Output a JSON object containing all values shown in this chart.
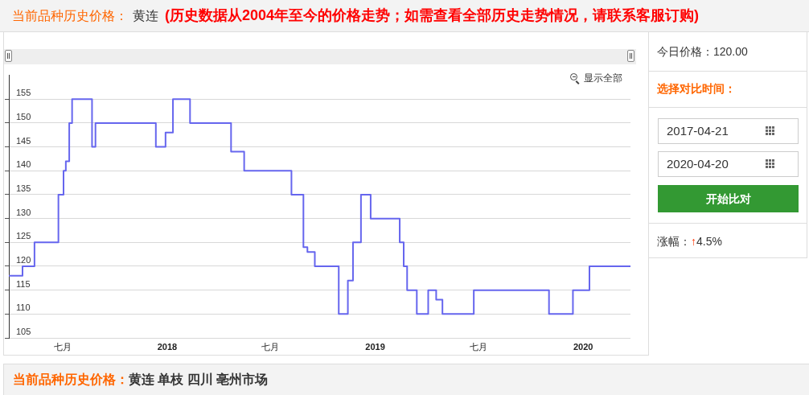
{
  "chart_data": {
    "type": "step",
    "annotations": [
      "当前品种历史价格：",
      "黄连",
      "(历史数据从2004年至今的价格走势；如需查看全部历史走势情况，请联系客服订购)",
      "显示全部",
      "今日价格：120.00",
      "选择对比时间：",
      "2017-04-21",
      "2020-04-20",
      "开始比对",
      "涨幅：",
      "↑",
      "4.5%",
      "当前品种历史价格：",
      "黄连 单枝 四川 亳州市场"
    ],
    "x": [
      "2017-03-29",
      "2017-04-22",
      "2017-05-13",
      "2017-06-24",
      "2017-07-03",
      "2017-07-07",
      "2017-07-13",
      "2017-07-18",
      "2017-08-22",
      "2017-08-28",
      "2017-12-12",
      "2017-12-29",
      "2018-01-11",
      "2018-02-10",
      "2018-04-23",
      "2018-05-16",
      "2018-08-07",
      "2018-08-28",
      "2018-09-04",
      "2018-09-17",
      "2018-10-29",
      "2018-11-14",
      "2018-11-23",
      "2018-12-07",
      "2018-12-24",
      "2019-02-13",
      "2019-02-20",
      "2019-02-26",
      "2019-03-15",
      "2019-04-04",
      "2019-04-18",
      "2019-04-29",
      "2019-06-23",
      "2019-11-02",
      "2019-12-14",
      "2020-01-12",
      "2020-03-24"
    ],
    "values": [
      118,
      120,
      125,
      135,
      140,
      142,
      150,
      155,
      145,
      150,
      145,
      148,
      155,
      150,
      144,
      140,
      135,
      124,
      123,
      120,
      110,
      117,
      125,
      135,
      130,
      125,
      120,
      115,
      110,
      115,
      113,
      110,
      115,
      110,
      115,
      120,
      120
    ],
    "color": "#6666ee",
    "xlim": [
      "2017-03-29",
      "2020-03-24"
    ],
    "xticks": [
      {
        "value": "2017-07-01",
        "label": "七月"
      },
      {
        "value": "2018-01-01",
        "label": "2018"
      },
      {
        "value": "2018-07-01",
        "label": "七月"
      },
      {
        "value": "2019-01-01",
        "label": "2019"
      },
      {
        "value": "2019-07-01",
        "label": "七月"
      },
      {
        "value": "2020-01-01",
        "label": "2020"
      }
    ],
    "ylim": [
      105,
      160
    ],
    "yticks": [
      105,
      110,
      115,
      120,
      125,
      130,
      135,
      140,
      145,
      150,
      155
    ],
    "grid": "y",
    "marker": "none"
  }
}
